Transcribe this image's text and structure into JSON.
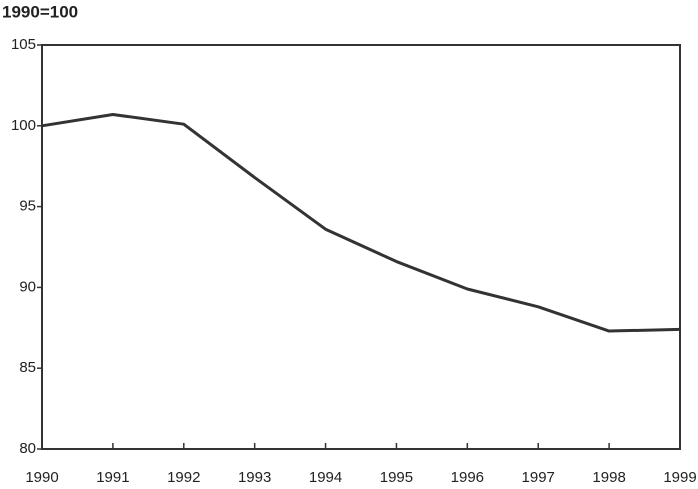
{
  "chart_data": {
    "type": "line",
    "title": "1990=100",
    "x": [
      1990,
      1991,
      1992,
      1993,
      1994,
      1995,
      1996,
      1997,
      1998,
      1999
    ],
    "values": [
      100,
      100.7,
      100.1,
      96.8,
      93.6,
      91.6,
      89.9,
      88.8,
      87.3,
      87.4
    ],
    "color": "#333333",
    "xlim": [
      1990,
      1999
    ],
    "xticks": [
      1990,
      1991,
      1992,
      1993,
      1994,
      1995,
      1996,
      1997,
      1998,
      1999
    ],
    "ylim": [
      80,
      105
    ],
    "yticks": [
      80,
      85,
      90,
      95,
      100,
      105
    ]
  }
}
